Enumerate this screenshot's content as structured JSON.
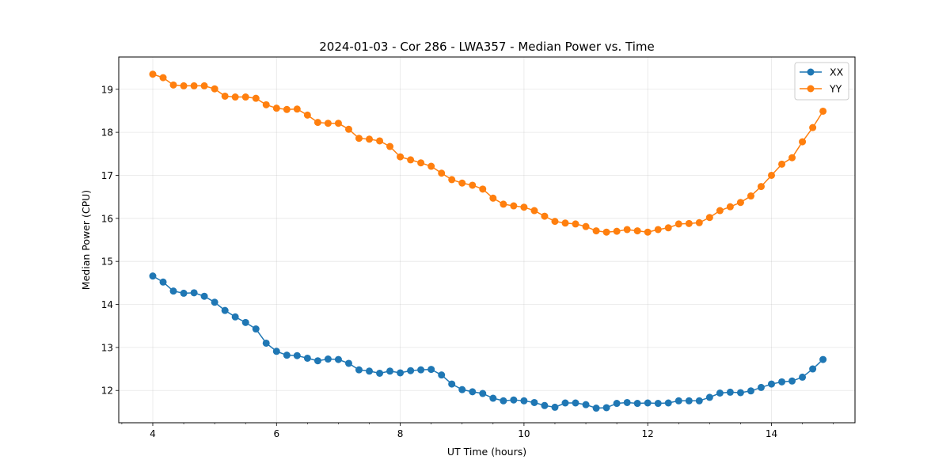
{
  "chart_data": {
    "type": "line",
    "title": "2024-01-03 - Cor 286 - LWA357 - Median Power vs. Time",
    "xlabel": "UT Time (hours)",
    "ylabel": "Median Power (CPU)",
    "xlim": [
      3.45,
      15.35
    ],
    "ylim": [
      11.25,
      19.75
    ],
    "xticks": [
      4,
      6,
      8,
      10,
      12,
      14
    ],
    "xtick_labels": [
      "4",
      "6",
      "8",
      "10",
      "12",
      "14"
    ],
    "yticks": [
      12,
      13,
      14,
      15,
      16,
      17,
      18,
      19
    ],
    "ytick_labels": [
      "12",
      "13",
      "14",
      "15",
      "16",
      "17",
      "18",
      "19"
    ],
    "grid": true,
    "legend_position": "top-right",
    "x": [
      4.0,
      4.167,
      4.333,
      4.5,
      4.667,
      4.833,
      5.0,
      5.167,
      5.333,
      5.5,
      5.667,
      5.833,
      6.0,
      6.167,
      6.333,
      6.5,
      6.667,
      6.833,
      7.0,
      7.167,
      7.333,
      7.5,
      7.667,
      7.833,
      8.0,
      8.167,
      8.333,
      8.5,
      8.667,
      8.833,
      9.0,
      9.167,
      9.333,
      9.5,
      9.667,
      9.833,
      10.0,
      10.167,
      10.333,
      10.5,
      10.667,
      10.833,
      11.0,
      11.167,
      11.333,
      11.5,
      11.667,
      11.833,
      12.0,
      12.167,
      12.333,
      12.5,
      12.667,
      12.833,
      13.0,
      13.167,
      13.333,
      13.5,
      13.667,
      13.833,
      14.0,
      14.167,
      14.333,
      14.5,
      14.667,
      14.833
    ],
    "series": [
      {
        "name": "XX",
        "color": "#1f77b4",
        "values": [
          14.66,
          14.52,
          14.31,
          14.26,
          14.27,
          14.19,
          14.05,
          13.86,
          13.71,
          13.58,
          13.43,
          13.1,
          12.91,
          12.82,
          12.81,
          12.75,
          12.69,
          12.73,
          12.72,
          12.63,
          12.48,
          12.45,
          12.4,
          12.45,
          12.41,
          12.46,
          12.48,
          12.49,
          12.36,
          12.15,
          12.02,
          11.97,
          11.93,
          11.82,
          11.76,
          11.78,
          11.76,
          11.72,
          11.65,
          11.61,
          11.71,
          11.71,
          11.67,
          11.59,
          11.6,
          11.7,
          11.72,
          11.7,
          11.71,
          11.7,
          11.71,
          11.76,
          11.76,
          11.76,
          11.84,
          11.94,
          11.96,
          11.95,
          11.99,
          12.07,
          12.15,
          12.2,
          12.22,
          12.31,
          12.5,
          12.72
        ]
      },
      {
        "name": "YY",
        "color": "#ff7f0e",
        "values": [
          19.35,
          19.27,
          19.1,
          19.08,
          19.08,
          19.08,
          19.01,
          18.84,
          18.82,
          18.82,
          18.79,
          18.64,
          18.56,
          18.53,
          18.54,
          18.4,
          18.23,
          18.21,
          18.21,
          18.07,
          17.86,
          17.84,
          17.8,
          17.67,
          17.43,
          17.36,
          17.29,
          17.21,
          17.05,
          16.9,
          16.82,
          16.77,
          16.68,
          16.47,
          16.33,
          16.29,
          16.26,
          16.18,
          16.05,
          15.93,
          15.89,
          15.87,
          15.81,
          15.71,
          15.68,
          15.7,
          15.74,
          15.71,
          15.68,
          15.74,
          15.78,
          15.87,
          15.88,
          15.9,
          16.02,
          16.18,
          16.27,
          16.37,
          16.52,
          16.74,
          17.0,
          17.26,
          17.41,
          17.78,
          18.11,
          18.49
        ]
      }
    ]
  }
}
